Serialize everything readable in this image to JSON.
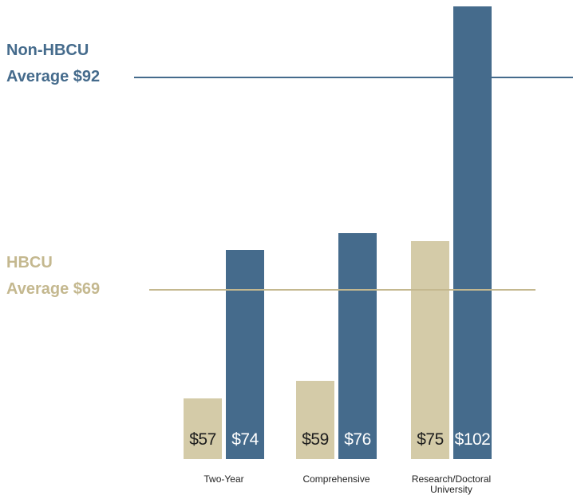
{
  "chart_data": {
    "type": "bar",
    "categories": [
      "Two-Year",
      "Comprehensive",
      "Research/Doctoral University"
    ],
    "series": [
      {
        "name": "HBCU",
        "color": "#d4cba8",
        "values": [
          57,
          59,
          75
        ],
        "value_labels": [
          "$57",
          "$59",
          "$75"
        ],
        "average": 69,
        "average_label": "Average $69",
        "label_color": "#c4b88f",
        "text_color": "#1e1e1e"
      },
      {
        "name": "Non-HBCU",
        "color": "#456b8c",
        "values": [
          74,
          76,
          102
        ],
        "value_labels": [
          "$74",
          "$76",
          "$102"
        ],
        "average": 92,
        "average_label": "Average $92",
        "label_color": "#456b8c",
        "text_color": "#ffffff"
      }
    ],
    "ylim": [
      50,
      102
    ]
  }
}
